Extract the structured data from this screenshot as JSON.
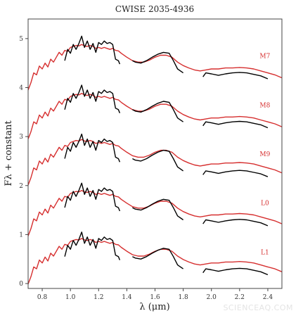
{
  "watermark": "SCIENCEAQ.COM",
  "colors": {
    "observed": "#000000",
    "template": "#d62f2f",
    "axes": "#444444"
  },
  "chart_data": {
    "type": "line",
    "title": "CWISE 2035-4936",
    "xlabel": "λ (μm)",
    "ylabel": "Fλ  +  constant",
    "xlim": [
      0.7,
      2.5
    ],
    "ylim": [
      -0.1,
      5.4
    ],
    "xticks": [
      0.8,
      1.0,
      1.2,
      1.4,
      1.6,
      1.8,
      2.0,
      2.2,
      2.4
    ],
    "yticks": [
      0,
      1,
      2,
      3,
      4,
      5
    ],
    "tick_labels_x": [
      "0.8",
      "1.0",
      "1.2",
      "1.4",
      "1.6",
      "1.8",
      "2.0",
      "2.2",
      "2.4"
    ],
    "tick_labels_y": [
      "0",
      "1",
      "2",
      "3",
      "4",
      "5"
    ],
    "grid": false,
    "legend": "none",
    "observed_spectrum": {
      "segments": [
        {
          "x": [
            0.96,
            0.98,
            1.0,
            1.02,
            1.04,
            1.06,
            1.08,
            1.1,
            1.12,
            1.14,
            1.16,
            1.18,
            1.2,
            1.22,
            1.24,
            1.26,
            1.28,
            1.3,
            1.32,
            1.34,
            1.35
          ],
          "y": [
            0.55,
            0.78,
            0.7,
            0.88,
            0.78,
            0.9,
            1.05,
            0.82,
            0.95,
            0.78,
            0.9,
            0.72,
            0.92,
            0.88,
            0.95,
            0.9,
            0.92,
            0.88,
            0.58,
            0.55,
            0.48
          ]
        },
        {
          "x": [
            1.44,
            1.46,
            1.5,
            1.54,
            1.58,
            1.62,
            1.66,
            1.7,
            1.73,
            1.76,
            1.8
          ],
          "y": [
            0.55,
            0.52,
            0.5,
            0.55,
            0.62,
            0.68,
            0.72,
            0.7,
            0.55,
            0.38,
            0.3
          ]
        },
        {
          "x": [
            1.94,
            1.96,
            2.0,
            2.05,
            2.1,
            2.15,
            2.2,
            2.25,
            2.3,
            2.35,
            2.4
          ],
          "y": [
            0.22,
            0.3,
            0.28,
            0.25,
            0.28,
            0.3,
            0.31,
            0.3,
            0.27,
            0.24,
            0.18
          ]
        }
      ]
    },
    "template_shape": {
      "x": [
        0.7,
        0.72,
        0.74,
        0.76,
        0.78,
        0.8,
        0.82,
        0.84,
        0.86,
        0.88,
        0.9,
        0.92,
        0.94,
        0.96,
        0.98,
        1.0,
        1.02,
        1.04,
        1.06,
        1.08,
        1.1,
        1.12,
        1.14,
        1.16,
        1.18,
        1.2,
        1.22,
        1.24,
        1.26,
        1.28,
        1.3,
        1.32,
        1.34,
        1.36,
        1.4,
        1.44,
        1.48,
        1.52,
        1.56,
        1.6,
        1.64,
        1.68,
        1.72,
        1.76,
        1.8,
        1.84,
        1.88,
        1.92,
        1.96,
        2.0,
        2.05,
        2.1,
        2.15,
        2.2,
        2.25,
        2.3,
        2.35,
        2.4,
        2.45,
        2.5
      ],
      "y": [
        -0.05,
        0.1,
        0.3,
        0.26,
        0.44,
        0.38,
        0.5,
        0.42,
        0.58,
        0.52,
        0.62,
        0.72,
        0.66,
        0.76,
        0.74,
        0.82,
        0.84,
        0.86,
        0.85,
        0.88,
        0.85,
        0.84,
        0.86,
        0.84,
        0.8,
        0.82,
        0.8,
        0.82,
        0.8,
        0.78,
        0.8,
        0.76,
        0.75,
        0.7,
        0.62,
        0.55,
        0.52,
        0.52,
        0.56,
        0.62,
        0.66,
        0.66,
        0.62,
        0.52,
        0.45,
        0.4,
        0.36,
        0.34,
        0.36,
        0.38,
        0.38,
        0.4,
        0.4,
        0.41,
        0.4,
        0.38,
        0.34,
        0.3,
        0.26,
        0.2
      ]
    },
    "series": [
      {
        "name": "M7",
        "offset": 4.0,
        "template_offset": 4.0,
        "label_x": 2.38,
        "label_y": 4.6
      },
      {
        "name": "M8",
        "offset": 3.0,
        "template_offset": 3.0,
        "label_x": 2.38,
        "label_y": 3.6
      },
      {
        "name": "M9",
        "offset": 2.0,
        "template_offset": 2.06,
        "label_x": 2.38,
        "label_y": 2.6
      },
      {
        "name": "L0",
        "offset": 1.0,
        "template_offset": 1.02,
        "label_x": 2.38,
        "label_y": 1.6
      },
      {
        "name": "L1",
        "offset": 0.0,
        "template_offset": 0.04,
        "label_x": 2.38,
        "label_y": 0.6
      }
    ]
  }
}
